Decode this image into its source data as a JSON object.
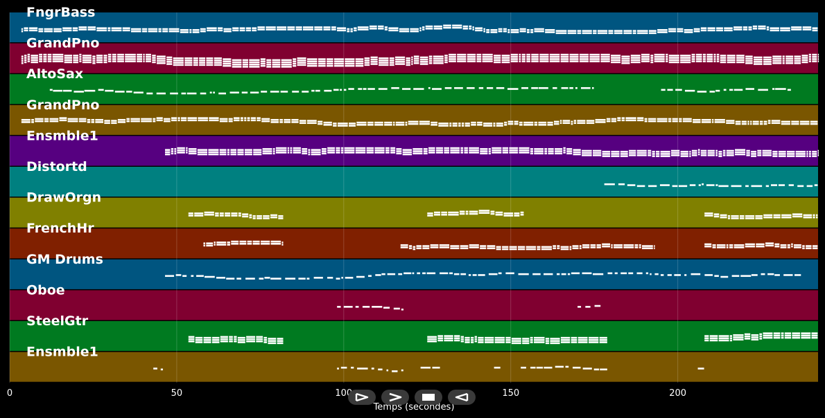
{
  "chart_data": {
    "type": "piano-roll",
    "xlabel": "Temps (secondes)",
    "xlim": [
      0,
      242
    ],
    "x_ticks": [
      0,
      50,
      100,
      150,
      200
    ],
    "x_tick_labels": [
      "0",
      "50",
      "100",
      "150",
      "200"
    ],
    "grid": true,
    "note_color": "#ffffff",
    "tracks": [
      {
        "name": "FngrBass",
        "color": "#005580",
        "active": [
          [
            3.5,
            242
          ]
        ],
        "density": 2
      },
      {
        "name": "GrandPno",
        "color": "#800030",
        "active": [
          [
            3.5,
            242
          ]
        ],
        "density": 4
      },
      {
        "name": "AltoSax",
        "color": "#007a20",
        "active": [
          [
            12,
            175
          ],
          [
            195,
            234
          ]
        ],
        "density": 1
      },
      {
        "name": "GrandPno",
        "color": "#7a5600",
        "active": [
          [
            3.5,
            242
          ]
        ],
        "density": 2
      },
      {
        "name": "Ensmble1",
        "color": "#560080",
        "active": [
          [
            46.5,
            242
          ]
        ],
        "density": 3
      },
      {
        "name": "Distortd",
        "color": "#008080",
        "active": [
          [
            178,
            242
          ]
        ],
        "density": 1
      },
      {
        "name": "DrawOrgn",
        "color": "#808000",
        "active": [
          [
            53.5,
            82
          ],
          [
            125,
            154
          ],
          [
            208,
            242
          ]
        ],
        "density": 2
      },
      {
        "name": "FrenchHr",
        "color": "#802000",
        "active": [
          [
            58,
            82
          ],
          [
            117,
            193
          ],
          [
            208,
            242
          ]
        ],
        "density": 2
      },
      {
        "name": "GM Drums",
        "color": "#005580",
        "active": [
          [
            46.5,
            237
          ]
        ],
        "density": 1
      },
      {
        "name": "Oboe",
        "color": "#800030",
        "active": [
          [
            98,
            118
          ],
          [
            170,
            177
          ]
        ],
        "density": 1
      },
      {
        "name": "SteelGtr",
        "color": "#007a20",
        "active": [
          [
            53.5,
            82
          ],
          [
            125,
            179
          ],
          [
            208,
            242
          ]
        ],
        "density": 3
      },
      {
        "name": "Ensmble1",
        "color": "#7a5600",
        "active": [
          [
            43,
            46
          ],
          [
            98,
            118
          ],
          [
            123,
            129
          ],
          [
            145,
            147
          ],
          [
            153,
            179
          ],
          [
            206,
            208
          ]
        ],
        "density": 1
      }
    ]
  },
  "controls": [
    {
      "label": "play",
      "icon": "play-icon"
    },
    {
      "label": "forward",
      "icon": "forward-icon"
    },
    {
      "label": "stop",
      "icon": "stop-icon"
    },
    {
      "label": "rewind",
      "icon": "rewind-icon"
    }
  ]
}
